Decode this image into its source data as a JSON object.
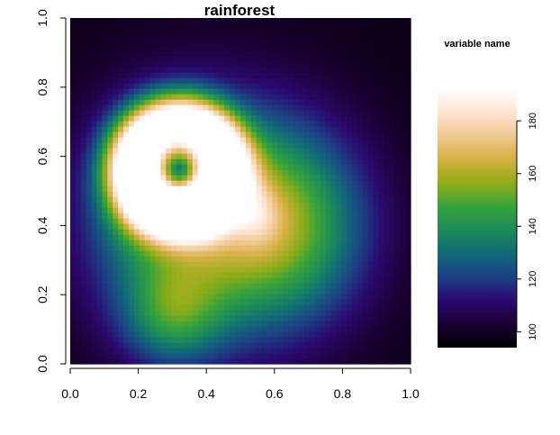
{
  "chart_data": {
    "type": "heatmap",
    "title": "rainforest",
    "xlabel": "",
    "ylabel": "",
    "xlim": [
      0.0,
      1.0
    ],
    "ylim": [
      0.0,
      1.0
    ],
    "x_ticks": [
      "0.0",
      "0.2",
      "0.4",
      "0.6",
      "0.8",
      "1.0"
    ],
    "y_ticks": [
      "0.0",
      "0.2",
      "0.4",
      "0.6",
      "0.8",
      "1.0"
    ],
    "grid": false,
    "legend": {
      "title": "variable name",
      "placement": "right",
      "range": [
        94,
        192
      ],
      "ticks": [
        "100",
        "120",
        "140",
        "160",
        "180"
      ],
      "colormap": [
        "#000000",
        "#1a0033",
        "#2a0a6e",
        "#1d3f85",
        "#116a78",
        "#1d8a5a",
        "#35a33a",
        "#8fad18",
        "#d5b040",
        "#f0c890",
        "#ffe4d4",
        "#ffffff"
      ]
    },
    "colorscale_name": "gist_earth-like",
    "field_background": 98,
    "field_components": [
      {
        "kind": "ring",
        "cx": 0.32,
        "cy": 0.57,
        "radius": 0.13,
        "width": 0.085,
        "peak": 90
      },
      {
        "kind": "blob",
        "cx": 0.19,
        "cy": 0.52,
        "sx": 0.07,
        "sy": 0.12,
        "peak": 18
      },
      {
        "kind": "blob",
        "cx": 0.37,
        "cy": 0.42,
        "sx": 0.22,
        "sy": 0.24,
        "peak": 52
      },
      {
        "kind": "blob",
        "cx": 0.65,
        "cy": 0.4,
        "sx": 0.17,
        "sy": 0.2,
        "peak": 40
      },
      {
        "kind": "blob",
        "cx": 0.55,
        "cy": 0.43,
        "sx": 0.045,
        "sy": 0.06,
        "peak": 15
      },
      {
        "kind": "blob",
        "cx": 0.3,
        "cy": 0.14,
        "sx": 0.1,
        "sy": 0.1,
        "peak": 28
      },
      {
        "kind": "blob",
        "cx": 0.32,
        "cy": 0.55,
        "sx": 0.035,
        "sy": 0.035,
        "peak": -25
      }
    ]
  }
}
